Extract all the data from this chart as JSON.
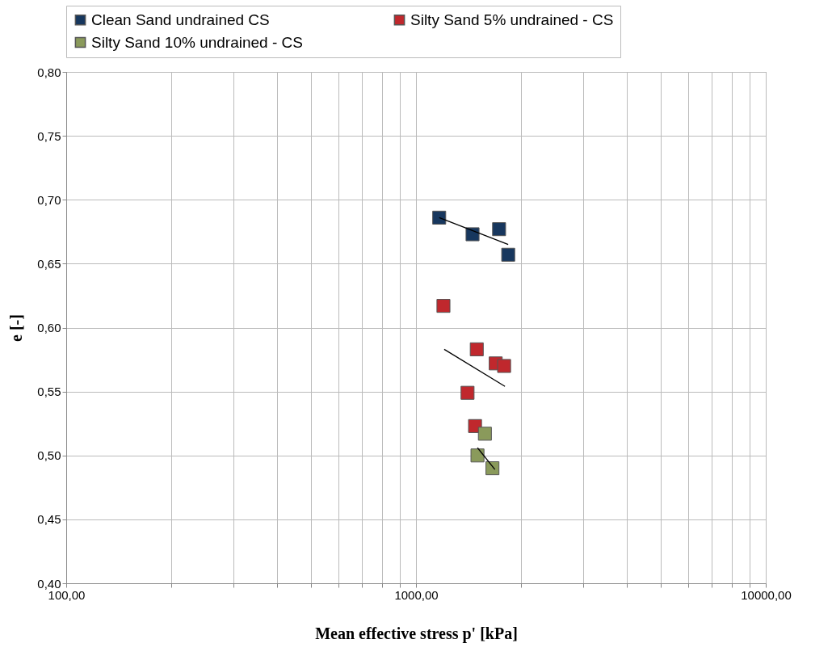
{
  "chart_data": {
    "type": "scatter",
    "xlabel": "Mean effective stress p' [kPa]",
    "ylabel": "e [-]",
    "log": "x",
    "grid": true,
    "legend": "top",
    "marker": "square",
    "xlim": [
      100,
      10000
    ],
    "ylim": [
      0.4,
      0.8
    ],
    "xticks": [
      {
        "value": 100,
        "label": "100,00"
      },
      {
        "value": 200,
        "label": null
      },
      {
        "value": 300,
        "label": null
      },
      {
        "value": 400,
        "label": null
      },
      {
        "value": 500,
        "label": null
      },
      {
        "value": 600,
        "label": null
      },
      {
        "value": 700,
        "label": null
      },
      {
        "value": 800,
        "label": null
      },
      {
        "value": 900,
        "label": null
      },
      {
        "value": 1000,
        "label": "1000,00"
      },
      {
        "value": 2000,
        "label": null
      },
      {
        "value": 3000,
        "label": null
      },
      {
        "value": 4000,
        "label": null
      },
      {
        "value": 5000,
        "label": null
      },
      {
        "value": 6000,
        "label": null
      },
      {
        "value": 7000,
        "label": null
      },
      {
        "value": 8000,
        "label": null
      },
      {
        "value": 9000,
        "label": null
      },
      {
        "value": 10000,
        "label": "10000,00"
      }
    ],
    "yticks": [
      {
        "value": 0.4,
        "label": "0,40"
      },
      {
        "value": 0.45,
        "label": "0,45"
      },
      {
        "value": 0.5,
        "label": "0,50"
      },
      {
        "value": 0.55,
        "label": "0,55"
      },
      {
        "value": 0.6,
        "label": "0,60"
      },
      {
        "value": 0.65,
        "label": "0,65"
      },
      {
        "value": 0.7,
        "label": "0,70"
      },
      {
        "value": 0.75,
        "label": "0,75"
      },
      {
        "value": 0.8,
        "label": "0,80"
      }
    ],
    "series": [
      {
        "name": "Clean Sand undrained CS",
        "color": "#17375e",
        "x": [
          1165,
          1451,
          1728,
          1835
        ],
        "values": [
          0.686,
          0.673,
          0.677,
          0.657
        ]
      },
      {
        "name": "Silty Sand 5% undrained - CS",
        "color": "#c0282d",
        "x": [
          1198,
          1492,
          1690,
          1786,
          1404,
          1475
        ],
        "values": [
          0.617,
          0.583,
          0.572,
          0.57,
          0.549,
          0.523
        ]
      },
      {
        "name": "Silty Sand 10% undrained - CS",
        "color": "#8a9a5b",
        "x": [
          1574,
          1499,
          1654
        ],
        "values": [
          0.517,
          0.5,
          0.49
        ]
      },
      {
        "type": "line",
        "color": "#000000",
        "marker": "none",
        "x": [
          1165,
          1835
        ],
        "values": [
          0.686,
          0.665
        ]
      },
      {
        "type": "line",
        "color": "#000000",
        "marker": "none",
        "x": [
          1204,
          1796
        ],
        "values": [
          0.583,
          0.554
        ]
      },
      {
        "type": "line",
        "color": "#000000",
        "marker": "none",
        "x": [
          1499,
          1681
        ],
        "values": [
          0.506,
          0.489
        ]
      }
    ]
  }
}
